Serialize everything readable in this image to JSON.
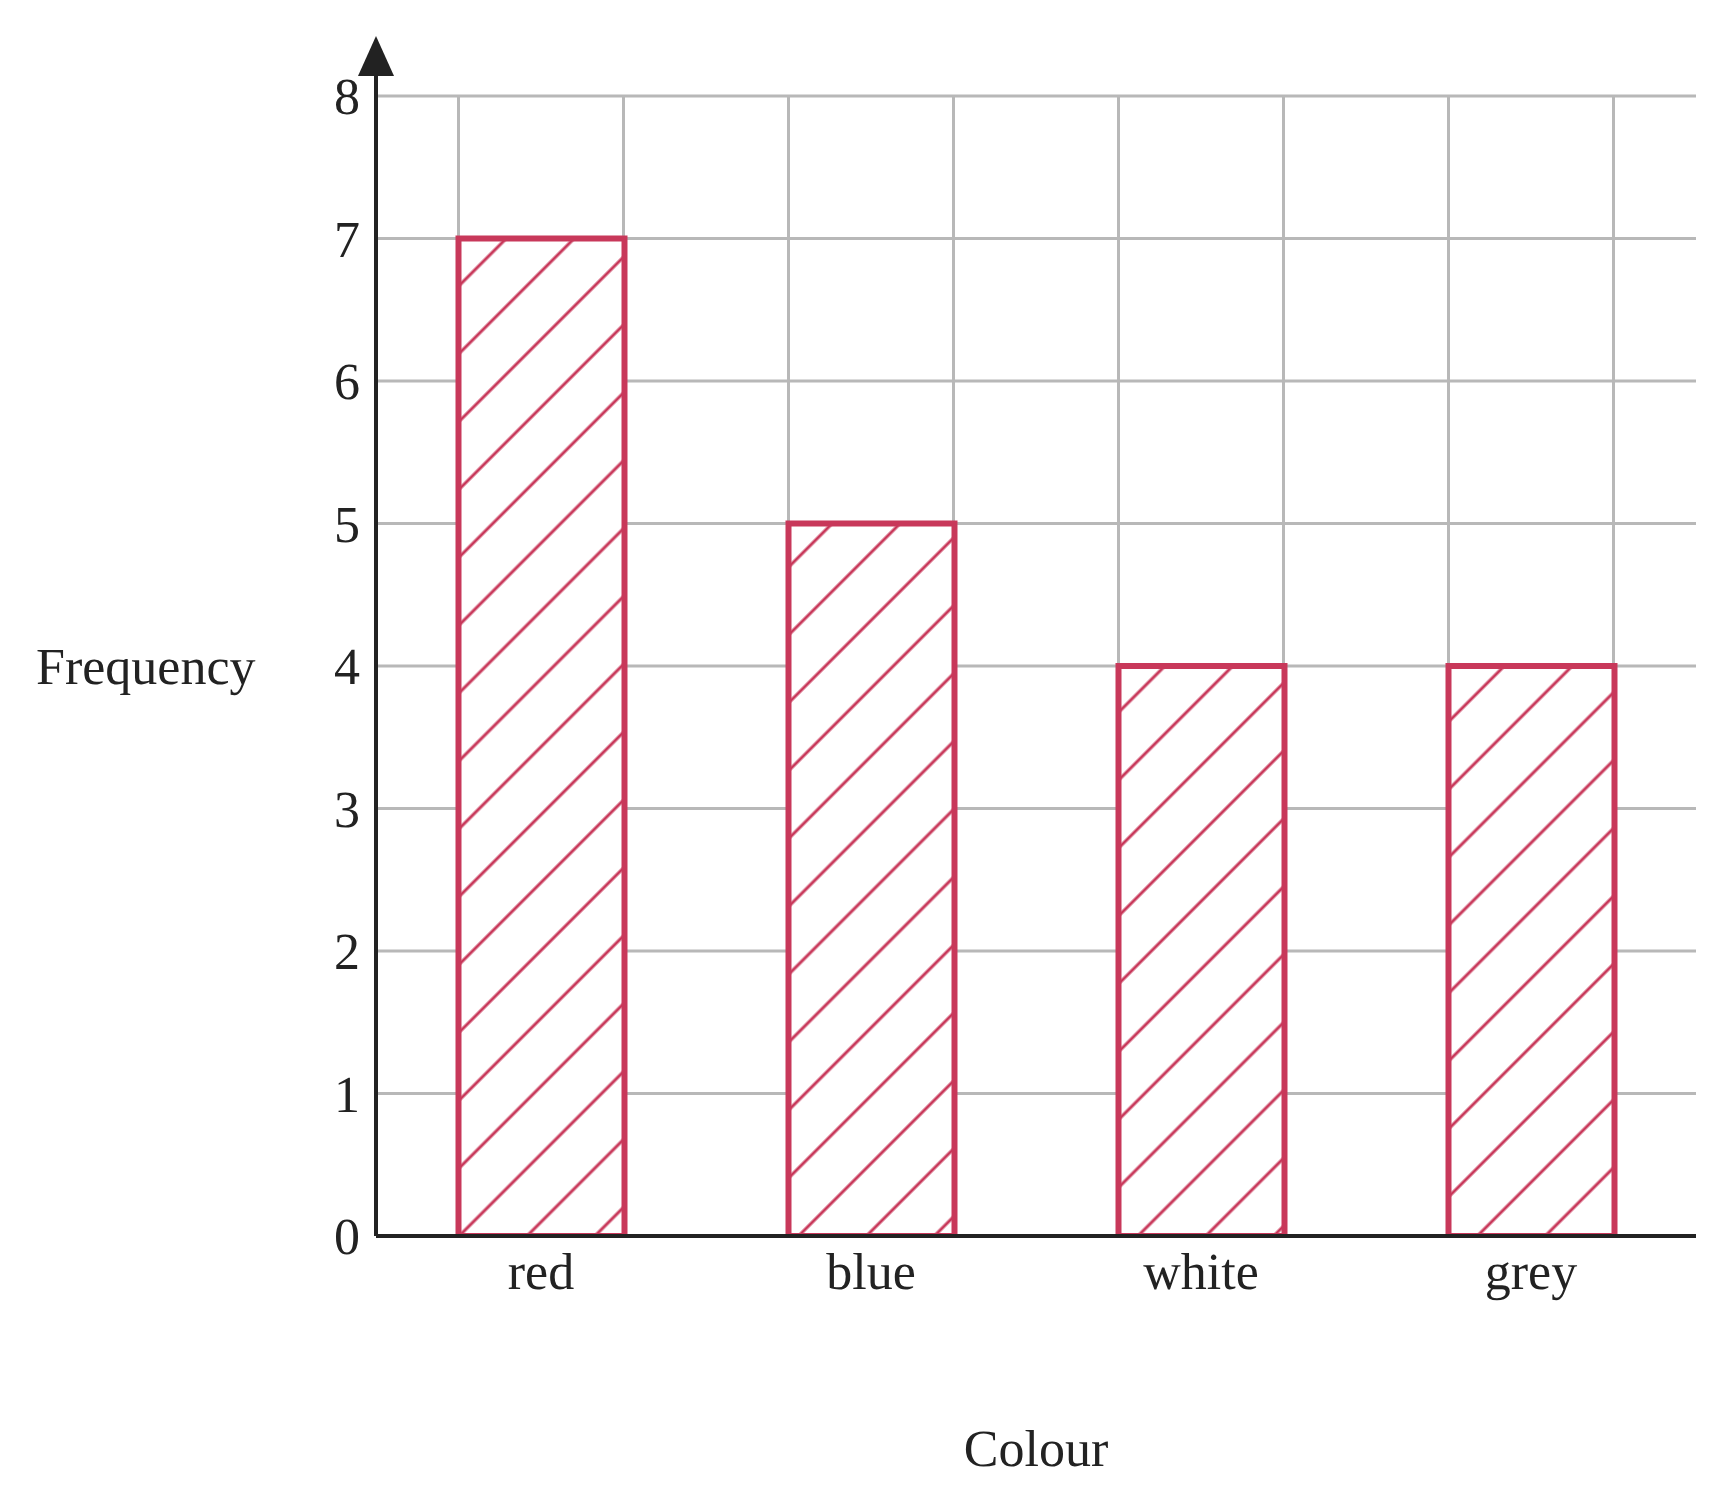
{
  "chart_data": {
    "type": "bar",
    "xlabel": "Colour",
    "ylabel": "Frequency",
    "categories": [
      "red",
      "blue",
      "white",
      "grey"
    ],
    "values": [
      7,
      5,
      4,
      4
    ],
    "color": "#c8385a",
    "ylim": [
      0,
      8
    ],
    "yticks": [
      0,
      1,
      2,
      3,
      4,
      5,
      6,
      7,
      8
    ],
    "grid": true
  }
}
